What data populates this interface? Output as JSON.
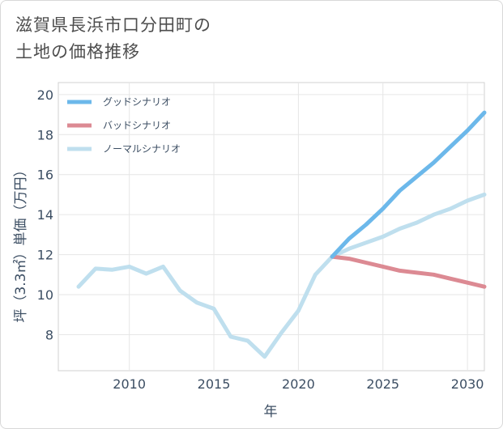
{
  "title_line1": "滋賀県長浜市口分田町の",
  "title_line2": "土地の価格推移",
  "chart_data": {
    "type": "line",
    "title": "滋賀県長浜市口分田町の土地の価格推移",
    "xlabel": "年",
    "ylabel": "坪（3.3㎡）単価（万円）",
    "xlim": [
      2005.8,
      2031
    ],
    "ylim": [
      6.2,
      20.6
    ],
    "xticks": [
      2010,
      2015,
      2020,
      2025,
      2030
    ],
    "yticks": [
      8,
      10,
      12,
      14,
      16,
      18,
      20
    ],
    "grid": true,
    "legend_position": "top-left",
    "series": [
      {
        "name": "グッドシナリオ",
        "color": "#6cb8ea",
        "x": [
          2022,
          2023,
          2024,
          2025,
          2026,
          2027,
          2028,
          2029,
          2030,
          2031
        ],
        "y": [
          11.9,
          12.8,
          13.5,
          14.3,
          15.2,
          15.9,
          16.6,
          17.4,
          18.2,
          19.1
        ]
      },
      {
        "name": "バッドシナリオ",
        "color": "#dc8a93",
        "x": [
          2022,
          2023,
          2024,
          2025,
          2026,
          2027,
          2028,
          2029,
          2030,
          2031
        ],
        "y": [
          11.9,
          11.8,
          11.6,
          11.4,
          11.2,
          11.1,
          11.0,
          10.8,
          10.6,
          10.4
        ]
      },
      {
        "name": "ノーマルシナリオ",
        "color": "#bfdfee",
        "x": [
          2007,
          2008,
          2009,
          2010,
          2011,
          2012,
          2013,
          2014,
          2015,
          2016,
          2017,
          2018,
          2019,
          2020,
          2021,
          2022,
          2023,
          2024,
          2025,
          2026,
          2027,
          2028,
          2029,
          2030,
          2031
        ],
        "y": [
          10.4,
          11.3,
          11.25,
          11.4,
          11.05,
          11.4,
          10.2,
          9.6,
          9.3,
          7.9,
          7.7,
          6.9,
          8.1,
          9.2,
          11.0,
          11.9,
          12.3,
          12.6,
          12.9,
          13.3,
          13.6,
          14.0,
          14.3,
          14.7,
          15.0
        ]
      }
    ]
  }
}
